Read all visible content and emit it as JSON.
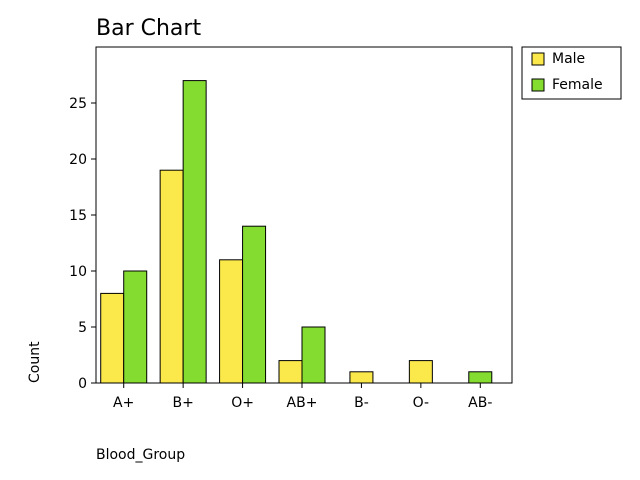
{
  "chart_data": {
    "type": "bar",
    "title": "Bar Chart",
    "xlabel": "Blood_Group",
    "ylabel": "Count",
    "categories": [
      "A+",
      "B+",
      "O+",
      "AB+",
      "B-",
      "O-",
      "AB-"
    ],
    "series": [
      {
        "name": "Male",
        "color": "#fbe84b",
        "values": [
          8,
          19,
          11,
          2,
          1,
          2,
          null
        ]
      },
      {
        "name": "Female",
        "color": "#84dc31",
        "values": [
          10,
          27,
          14,
          5,
          null,
          null,
          1
        ]
      }
    ],
    "ylim": [
      0,
      30
    ],
    "yticks": [
      0,
      5,
      10,
      15,
      20,
      25
    ],
    "legend_position": "outside-top-right",
    "grid": false
  }
}
